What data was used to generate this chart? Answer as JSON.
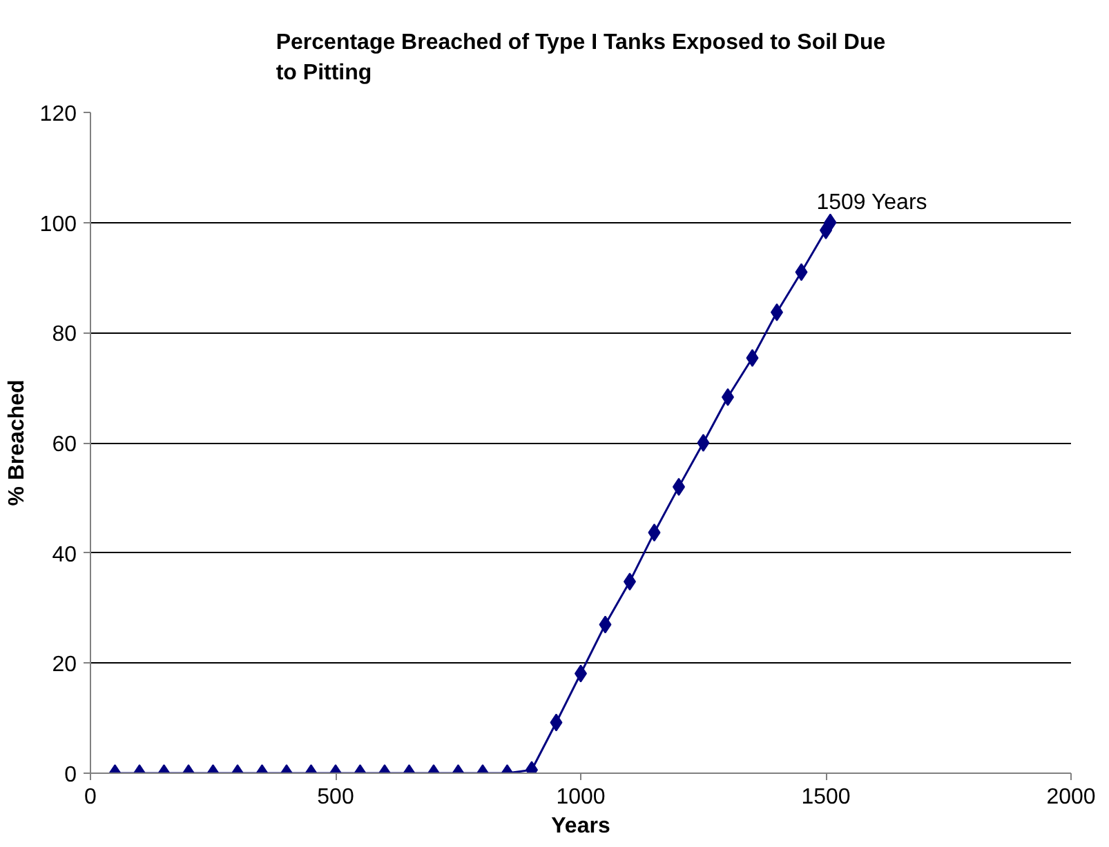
{
  "chart_data": {
    "type": "line",
    "title": "Percentage Breached of Type I Tanks Exposed to Soil Due to Pitting",
    "xlabel": "Years",
    "ylabel": "% Breached",
    "x": [
      50,
      100,
      150,
      200,
      250,
      300,
      350,
      400,
      450,
      500,
      550,
      600,
      650,
      700,
      750,
      800,
      850,
      900,
      950,
      1000,
      1050,
      1100,
      1150,
      1200,
      1250,
      1300,
      1350,
      1400,
      1450,
      1500,
      1509
    ],
    "series": [
      {
        "color": "#000080",
        "values": [
          0,
          0,
          0,
          0,
          0,
          0,
          0,
          0,
          0,
          0,
          0,
          0,
          0,
          0,
          0,
          0,
          0,
          0.6,
          9.2,
          18.1,
          27,
          34.8,
          43.7,
          52,
          60,
          68.3,
          75.4,
          83.7,
          91,
          98.6,
          100
        ]
      }
    ],
    "xlim": [
      0,
      2000
    ],
    "xticks": [
      0,
      500,
      1000,
      1500,
      2000
    ],
    "ylim": [
      0,
      120
    ],
    "yticks": [
      0,
      20,
      40,
      60,
      80,
      100,
      120
    ],
    "grid": "y",
    "marker": "diamond",
    "line_style": "solid",
    "annotations": [
      {
        "text": "1509 Years",
        "x": 1509,
        "y": 100
      }
    ]
  }
}
